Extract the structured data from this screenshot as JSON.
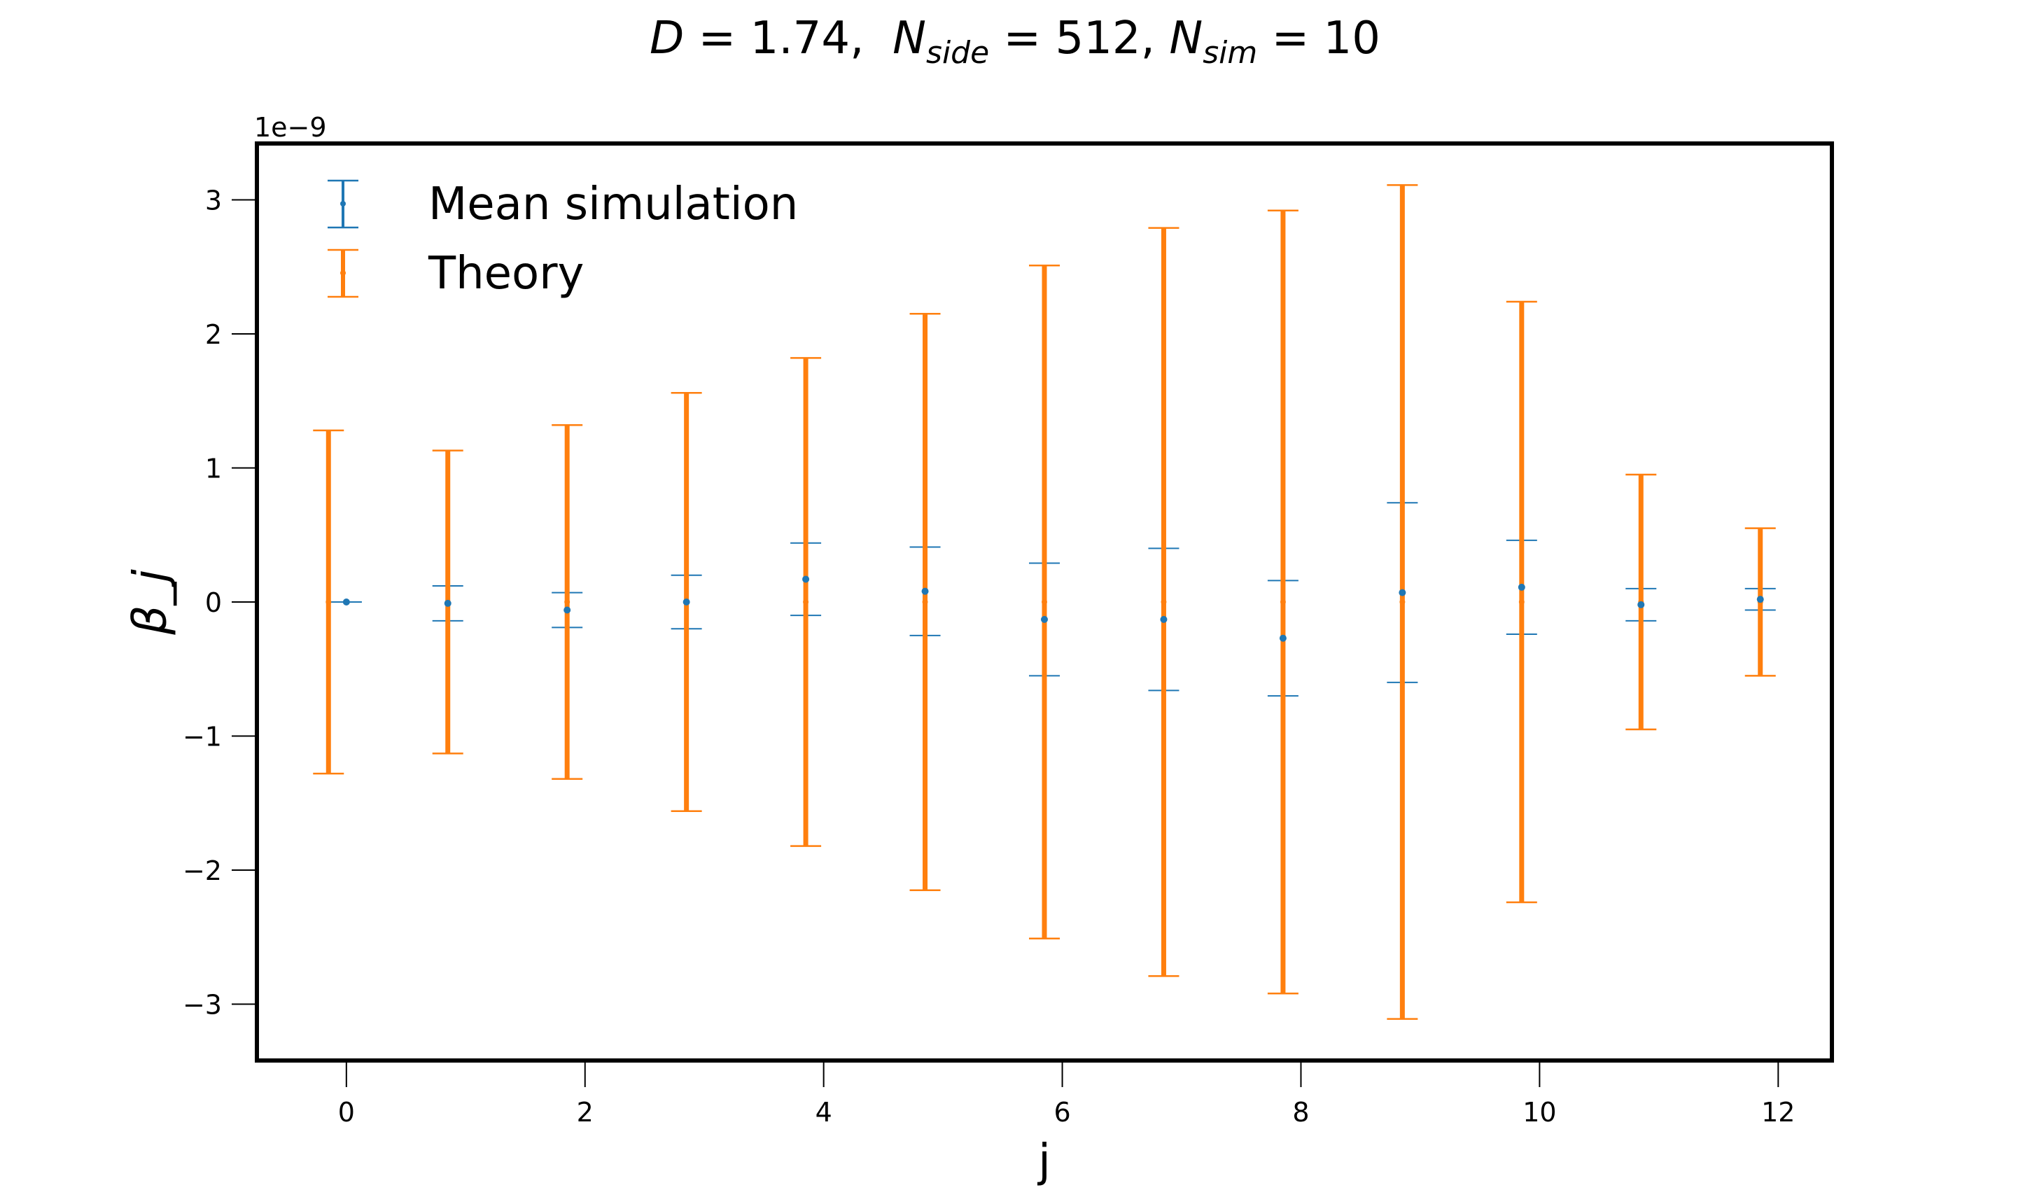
{
  "title": {
    "d_label": "D",
    "d_value": "= 1.74,",
    "nside_label": "N",
    "nside_sub": "side",
    "nside_value": "= 512,",
    "nsim_label": "N",
    "nsim_sub": "sim",
    "nsim_value": "= 10"
  },
  "chart_data": {
    "type": "scatter",
    "title": "D = 1.74, N_side = 512, N_sim = 10",
    "xlabel": "j",
    "ylabel": "β_j",
    "y_multiplier": "1e−9",
    "xlim": [
      -0.75,
      12.45
    ],
    "ylim": [
      -3.42,
      3.42
    ],
    "x_ticks": [
      0,
      2,
      4,
      6,
      8,
      10,
      12
    ],
    "x_tick_labels": [
      "0",
      "2",
      "4",
      "6",
      "8",
      "10",
      "12"
    ],
    "y_ticks": [
      -3,
      -2,
      -1,
      0,
      1,
      2,
      3
    ],
    "y_tick_labels": [
      "−3",
      "−2",
      "−1",
      "0",
      "1",
      "2",
      "3"
    ],
    "grid": false,
    "legend_position": "top-left",
    "legend": [
      "Mean simulation",
      "Theory"
    ],
    "colors": {
      "mean_simulation": "#1f77b4",
      "theory": "#ff7f0e"
    },
    "series": [
      {
        "name": "Mean simulation",
        "x": [
          0,
          0.85,
          1.85,
          2.85,
          3.85,
          4.85,
          5.85,
          6.85,
          7.85,
          8.85,
          9.85,
          10.85,
          11.85
        ],
        "y": [
          0.0,
          -0.01,
          -0.06,
          0.0,
          0.17,
          0.08,
          -0.13,
          -0.13,
          -0.27,
          0.07,
          0.11,
          -0.02,
          0.02
        ],
        "yerr": [
          0.0,
          0.13,
          0.13,
          0.2,
          0.27,
          0.33,
          0.42,
          0.53,
          0.43,
          0.67,
          0.35,
          0.12,
          0.08
        ]
      },
      {
        "name": "Theory",
        "x": [
          -0.15,
          0.85,
          1.85,
          2.85,
          3.85,
          4.85,
          5.85,
          6.85,
          7.85,
          8.85,
          9.85,
          10.85,
          11.85
        ],
        "y": [
          0,
          0,
          0,
          0,
          0,
          0,
          0,
          0,
          0,
          0,
          0,
          0,
          0
        ],
        "yerr": [
          1.28,
          1.13,
          1.32,
          1.56,
          1.82,
          2.15,
          2.51,
          2.79,
          2.92,
          3.11,
          2.24,
          0.95,
          0.55
        ]
      }
    ]
  }
}
